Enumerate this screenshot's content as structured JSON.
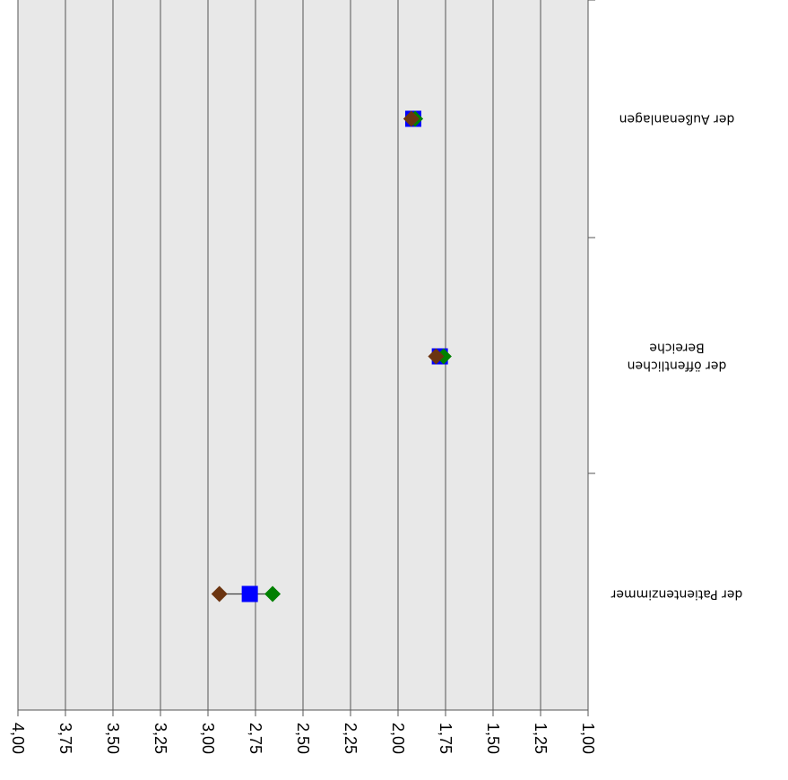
{
  "chart_data": {
    "type": "dot-range",
    "orientation": "upside-down",
    "categories": [
      {
        "lines": [
          "der Außenanlagen"
        ]
      },
      {
        "lines": [
          "der öffentlichen",
          "Bereiche"
        ]
      },
      {
        "lines": [
          "der Patientenzimmer"
        ]
      }
    ],
    "series": [
      {
        "marker": "square",
        "color": "#0000ff",
        "values": [
          1.92,
          1.78,
          2.78
        ]
      },
      {
        "marker": "diamond",
        "color": "#008000",
        "values": [
          1.91,
          1.76,
          2.66
        ]
      },
      {
        "marker": "diamond",
        "color": "#6b3410",
        "values": [
          1.93,
          1.8,
          2.94
        ]
      }
    ],
    "value_axis": {
      "min": 1.0,
      "max": 4.0,
      "step": 0.25,
      "reversed": true,
      "tick_labels": [
        "1,00",
        "1,25",
        "1,50",
        "1,75",
        "2,00",
        "2,25",
        "2,50",
        "2,75",
        "3,00",
        "3,25",
        "3,50",
        "3,75",
        "4,00"
      ]
    },
    "grid": true,
    "colors": {
      "plot_bg": "#e8e8e8",
      "gridline": "#555555",
      "connector": "#404040"
    }
  }
}
